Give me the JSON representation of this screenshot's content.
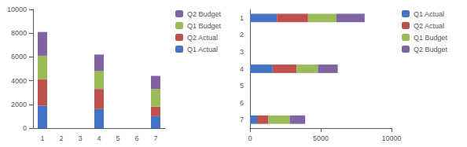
{
  "chart_data": [
    {
      "type": "bar",
      "stacked": true,
      "grid": false,
      "legend": "right",
      "categories": [
        "1",
        "2",
        "3",
        "4",
        "5",
        "6",
        "7"
      ],
      "series": [
        {
          "name": "Q1 Actual",
          "color": "#4472C4",
          "values": [
            1900,
            0,
            0,
            1600,
            0,
            0,
            1000
          ]
        },
        {
          "name": "Q2 Actual",
          "color": "#C0504D",
          "values": [
            2200,
            0,
            0,
            1700,
            0,
            0,
            800
          ]
        },
        {
          "name": "Q1 Budget",
          "color": "#9BBB59",
          "values": [
            2000,
            0,
            0,
            1500,
            0,
            0,
            1500
          ]
        },
        {
          "name": "Q2 Budget",
          "color": "#8064A2",
          "values": [
            2000,
            0,
            0,
            1400,
            0,
            0,
            1100
          ]
        }
      ],
      "ylim": [
        0,
        10000
      ],
      "yticks": [
        0,
        2000,
        4000,
        6000,
        8000,
        10000
      ]
    },
    {
      "type": "bar",
      "orientation": "horizontal",
      "stacked": true,
      "grid": false,
      "legend": "right",
      "categories": [
        "1",
        "2",
        "3",
        "4",
        "5",
        "6",
        "7"
      ],
      "series": [
        {
          "name": "Q1 Actual",
          "color": "#4472C4",
          "values": [
            1900,
            0,
            0,
            1600,
            0,
            0,
            500
          ]
        },
        {
          "name": "Q2 Actual",
          "color": "#C0504D",
          "values": [
            2200,
            0,
            0,
            1700,
            0,
            0,
            800
          ]
        },
        {
          "name": "Q1 Budget",
          "color": "#9BBB59",
          "values": [
            2000,
            0,
            0,
            1500,
            0,
            0,
            1500
          ]
        },
        {
          "name": "Q2 Budget",
          "color": "#8064A2",
          "values": [
            2000,
            0,
            0,
            1400,
            0,
            0,
            1100
          ]
        }
      ],
      "xlim": [
        0,
        10000
      ],
      "xticks": [
        0,
        5000,
        10000
      ]
    }
  ]
}
